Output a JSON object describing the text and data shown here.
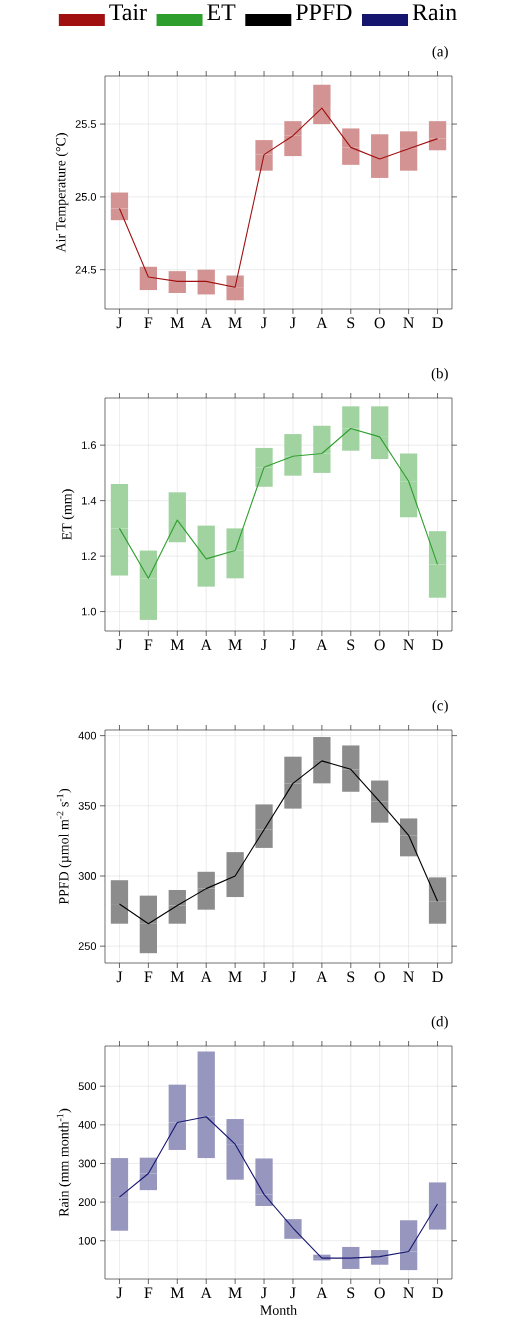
{
  "chart_data": [
    {
      "type": "line",
      "title": "(a)",
      "ylabel": "Air Temperature (°C)",
      "categories": [
        "J",
        "F",
        "M",
        "A",
        "M",
        "J",
        "J",
        "A",
        "S",
        "O",
        "N",
        "D"
      ],
      "legend": "top",
      "grid": true,
      "ylim": [
        24.23,
        25.83
      ],
      "yticks": [
        {
          "value": 24.5,
          "label": "24.5"
        },
        {
          "value": 25.0,
          "label": "25.0"
        },
        {
          "value": 25.5,
          "label": "25.5"
        }
      ],
      "series": [
        {
          "name": "Tair",
          "color": "#a01010",
          "values": [
            24.92,
            24.45,
            24.42,
            24.42,
            24.38,
            25.29,
            25.42,
            25.61,
            25.34,
            25.26,
            25.33,
            25.4
          ],
          "errors": [
            [
              24.84,
              25.03
            ],
            [
              24.36,
              24.52
            ],
            [
              24.34,
              24.49
            ],
            [
              24.33,
              24.5
            ],
            [
              24.29,
              24.46
            ],
            [
              25.18,
              25.39
            ],
            [
              25.28,
              25.52
            ],
            [
              25.5,
              25.77
            ],
            [
              25.22,
              25.47
            ],
            [
              25.13,
              25.43
            ],
            [
              25.18,
              25.45
            ],
            [
              25.32,
              25.52
            ]
          ]
        }
      ]
    },
    {
      "type": "line",
      "title": "(b)",
      "ylabel": "ET (mm)",
      "categories": [
        "J",
        "F",
        "M",
        "A",
        "M",
        "J",
        "J",
        "A",
        "S",
        "O",
        "N",
        "D"
      ],
      "legend": "top",
      "grid": true,
      "ylim": [
        0.93,
        1.77
      ],
      "yticks": [
        {
          "value": 1.0,
          "label": "1.0"
        },
        {
          "value": 1.2,
          "label": "1.2"
        },
        {
          "value": 1.4,
          "label": "1.4"
        },
        {
          "value": 1.6,
          "label": "1.6"
        }
      ],
      "series": [
        {
          "name": "ET",
          "color": "#2e9e2e",
          "values": [
            1.3,
            1.12,
            1.33,
            1.19,
            1.22,
            1.52,
            1.56,
            1.57,
            1.66,
            1.63,
            1.47,
            1.17
          ],
          "errors": [
            [
              1.13,
              1.46
            ],
            [
              0.97,
              1.22
            ],
            [
              1.25,
              1.43
            ],
            [
              1.09,
              1.31
            ],
            [
              1.12,
              1.3
            ],
            [
              1.45,
              1.59
            ],
            [
              1.49,
              1.64
            ],
            [
              1.5,
              1.67
            ],
            [
              1.58,
              1.74
            ],
            [
              1.55,
              1.74
            ],
            [
              1.34,
              1.57
            ],
            [
              1.05,
              1.29
            ]
          ]
        }
      ]
    },
    {
      "type": "line",
      "title": "(c)",
      "ylabel": "PPFD (µmol m$^{-2}$ s$^{-1}$)",
      "categories": [
        "J",
        "F",
        "M",
        "A",
        "M",
        "J",
        "J",
        "A",
        "S",
        "O",
        "N",
        "D"
      ],
      "legend": "top",
      "grid": true,
      "ylim": [
        238,
        404
      ],
      "yticks": [
        {
          "value": 250,
          "label": "250"
        },
        {
          "value": 300,
          "label": "300"
        },
        {
          "value": 350,
          "label": "350"
        },
        {
          "value": 400,
          "label": "400"
        }
      ],
      "series": [
        {
          "name": "PPFD",
          "color": "#000000",
          "values": [
            280,
            266,
            279,
            291,
            300,
            333,
            366,
            382,
            376,
            353,
            329,
            282
          ],
          "errors": [
            [
              266,
              297
            ],
            [
              245,
              286
            ],
            [
              266,
              290
            ],
            [
              276,
              303
            ],
            [
              285,
              317
            ],
            [
              320,
              351
            ],
            [
              348,
              385
            ],
            [
              366,
              399
            ],
            [
              360,
              393
            ],
            [
              338,
              368
            ],
            [
              314,
              341
            ],
            [
              266,
              299
            ]
          ]
        }
      ]
    },
    {
      "type": "line",
      "title": "(d)",
      "ylabel": "Rain (mm month$^{-1}$)",
      "xlabel": "Month",
      "categories": [
        "J",
        "F",
        "M",
        "A",
        "M",
        "J",
        "J",
        "A",
        "S",
        "O",
        "N",
        "D"
      ],
      "legend": "top",
      "grid": true,
      "ylim": [
        1,
        604
      ],
      "yticks": [
        {
          "value": 100,
          "label": "100"
        },
        {
          "value": 200,
          "label": "200"
        },
        {
          "value": 300,
          "label": "300"
        },
        {
          "value": 400,
          "label": "400"
        },
        {
          "value": 500,
          "label": "500"
        }
      ],
      "series": [
        {
          "name": "Rain",
          "color": "#151570",
          "values": [
            213,
            274,
            406,
            421,
            350,
            220,
            133,
            55,
            55,
            59,
            72,
            195
          ],
          "errors": [
            [
              126,
              314
            ],
            [
              231,
              315
            ],
            [
              335,
              504
            ],
            [
              314,
              590
            ],
            [
              258,
              415
            ],
            [
              190,
              313
            ],
            [
              105,
              156
            ],
            [
              49,
              64
            ],
            [
              27,
              84
            ],
            [
              38,
              76
            ],
            [
              24,
              153
            ],
            [
              129,
              251
            ]
          ]
        }
      ]
    }
  ]
}
